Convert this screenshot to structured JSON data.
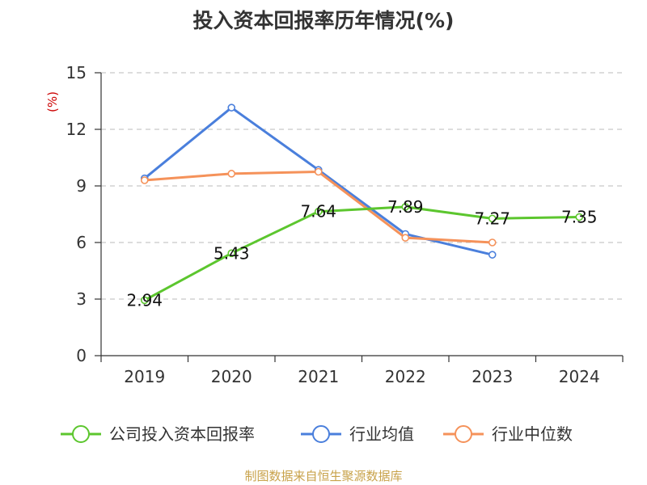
{
  "chart_data": {
    "type": "line",
    "title": "投入资本回报率历年情况(%)",
    "ylabel": "(%)",
    "xlabel": "",
    "categories": [
      "2019",
      "2020",
      "2021",
      "2022",
      "2023",
      "2024"
    ],
    "ylim": [
      0,
      15
    ],
    "yticks": [
      0,
      3,
      6,
      9,
      12,
      15
    ],
    "grid": "horizontal-dashed",
    "legend_position": "bottom",
    "series": [
      {
        "name": "公司投入资本回报率",
        "color": "#5cc62e",
        "values": [
          2.94,
          5.43,
          7.64,
          7.89,
          7.27,
          7.35
        ],
        "data_labels": [
          "2.94",
          "5.43",
          "7.64",
          "7.89",
          "7.27",
          "7.35"
        ]
      },
      {
        "name": "行业均值",
        "color": "#4a7fdc",
        "values": [
          9.4,
          13.15,
          9.85,
          6.45,
          5.35,
          null
        ]
      },
      {
        "name": "行业中位数",
        "color": "#f5925a",
        "values": [
          9.3,
          9.65,
          9.75,
          6.25,
          6.0,
          null
        ]
      }
    ]
  },
  "footer": {
    "source": "制图数据来自恒生聚源数据库"
  }
}
